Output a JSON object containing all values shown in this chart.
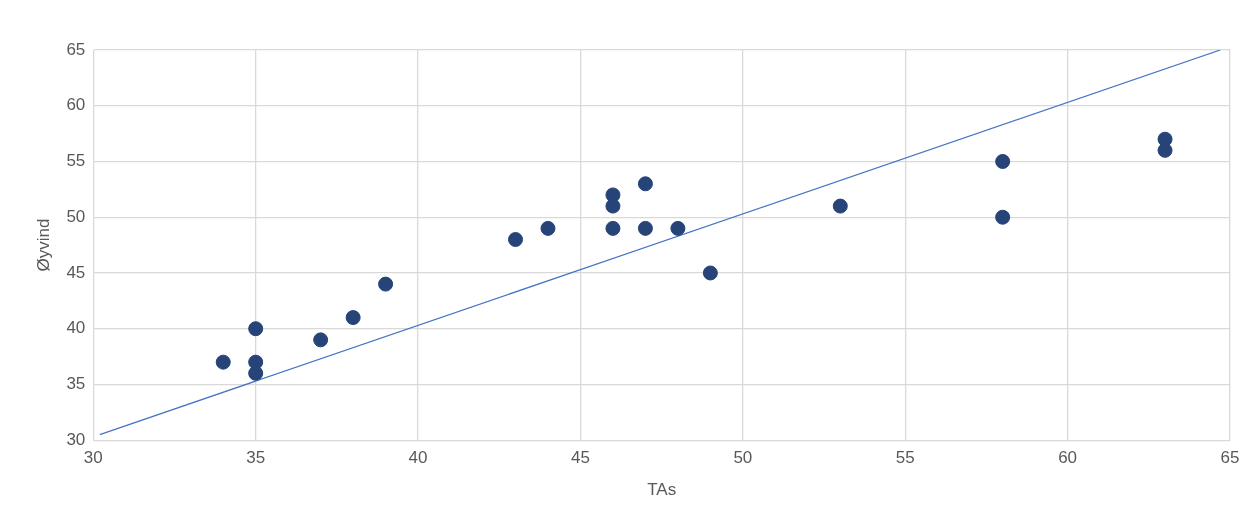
{
  "chart_data": {
    "type": "scatter",
    "xlabel": "TAs",
    "ylabel": "Øyvind",
    "xlim": [
      30,
      65
    ],
    "xticks": [
      30,
      35,
      40,
      45,
      50,
      55,
      60,
      65
    ],
    "ylim": [
      30,
      65
    ],
    "yticks": [
      30,
      35,
      40,
      45,
      50,
      55,
      60,
      65
    ],
    "grid": true,
    "legend": false,
    "series": [
      {
        "marker": "circle",
        "color": "#264478",
        "x": [
          34,
          35,
          35,
          35,
          37,
          38,
          39,
          43,
          44,
          46,
          46,
          46,
          47,
          47,
          48,
          49,
          53,
          58,
          58,
          63,
          63
        ],
        "values": [
          37,
          40,
          37,
          36,
          39,
          41,
          44,
          48,
          49,
          52,
          51,
          49,
          53,
          49,
          49,
          45,
          51,
          55,
          50,
          57,
          56
        ]
      },
      {
        "type": "line",
        "marker": "none",
        "color": "#4472c4",
        "x": [
          30.2,
          64.7
        ],
        "values": [
          30.5,
          65
        ]
      }
    ]
  }
}
